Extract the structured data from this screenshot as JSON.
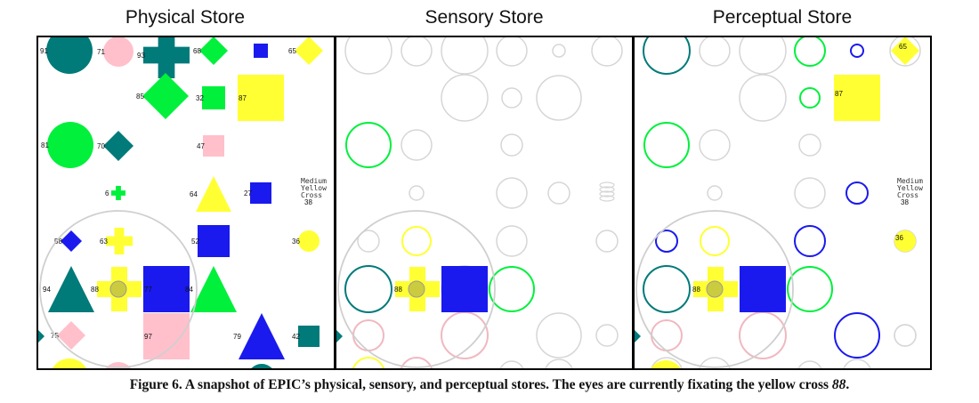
{
  "panels": [
    {
      "title": "Physical Store"
    },
    {
      "title": "Sensory Store"
    },
    {
      "title": "Perceptual Store"
    }
  ],
  "caption": {
    "lead": "Figure 6. A snapshot of EPIC’s physical, sensory, and perceptual stores. The eyes are currently fixating the yellow cross ",
    "fixated": "88",
    "end": "."
  },
  "colors": {
    "teal": "#017a7a",
    "pink": "#ffc0cb",
    "green": "#00f03c",
    "blue": "#1a1aee",
    "yellow": "#ffff33",
    "gray": "#d6d6d6"
  },
  "physical_objects": [
    {
      "label": "91",
      "shape": "circle",
      "color": "teal"
    },
    {
      "label": "71",
      "shape": "circle",
      "color": "pink"
    },
    {
      "label": "93",
      "shape": "cross",
      "color": "teal"
    },
    {
      "label": "68",
      "shape": "diamond",
      "color": "green"
    },
    {
      "label": "",
      "shape": "square",
      "color": "blue"
    },
    {
      "label": "65",
      "shape": "diamond",
      "color": "yellow"
    },
    {
      "label": "85",
      "shape": "diamond",
      "color": "green"
    },
    {
      "label": "32",
      "shape": "square",
      "color": "green"
    },
    {
      "label": "87",
      "shape": "square",
      "color": "yellow"
    },
    {
      "label": "81",
      "shape": "circle",
      "color": "green"
    },
    {
      "label": "70",
      "shape": "diamond",
      "color": "teal"
    },
    {
      "label": "47",
      "shape": "square",
      "color": "pink"
    },
    {
      "label": "6",
      "shape": "cross",
      "color": "green"
    },
    {
      "label": "64",
      "shape": "triangle",
      "color": "yellow"
    },
    {
      "label": "27",
      "shape": "square",
      "color": "blue"
    },
    {
      "label": "38",
      "shape": "text",
      "color": "gray"
    },
    {
      "label": "58",
      "shape": "diamond",
      "color": "blue"
    },
    {
      "label": "63",
      "shape": "cross",
      "color": "yellow"
    },
    {
      "label": "52",
      "shape": "square",
      "color": "blue"
    },
    {
      "label": "36",
      "shape": "circle",
      "color": "yellow"
    },
    {
      "label": "94",
      "shape": "triangle",
      "color": "teal"
    },
    {
      "label": "88",
      "shape": "cross",
      "color": "yellow"
    },
    {
      "label": "77",
      "shape": "square",
      "color": "blue"
    },
    {
      "label": "84",
      "shape": "triangle",
      "color": "green"
    },
    {
      "label": "75",
      "shape": "diamond",
      "color": "pink"
    },
    {
      "label": "97",
      "shape": "square",
      "color": "pink"
    },
    {
      "label": "79",
      "shape": "triangle",
      "color": "blue"
    },
    {
      "label": "42",
      "shape": "square",
      "color": "teal"
    }
  ],
  "text_object": {
    "lines": [
      "Medium",
      "Yellow",
      "Cross"
    ],
    "label": "38"
  },
  "perceptual_labels": [
    "65",
    "87",
    "36",
    "88",
    "38"
  ]
}
